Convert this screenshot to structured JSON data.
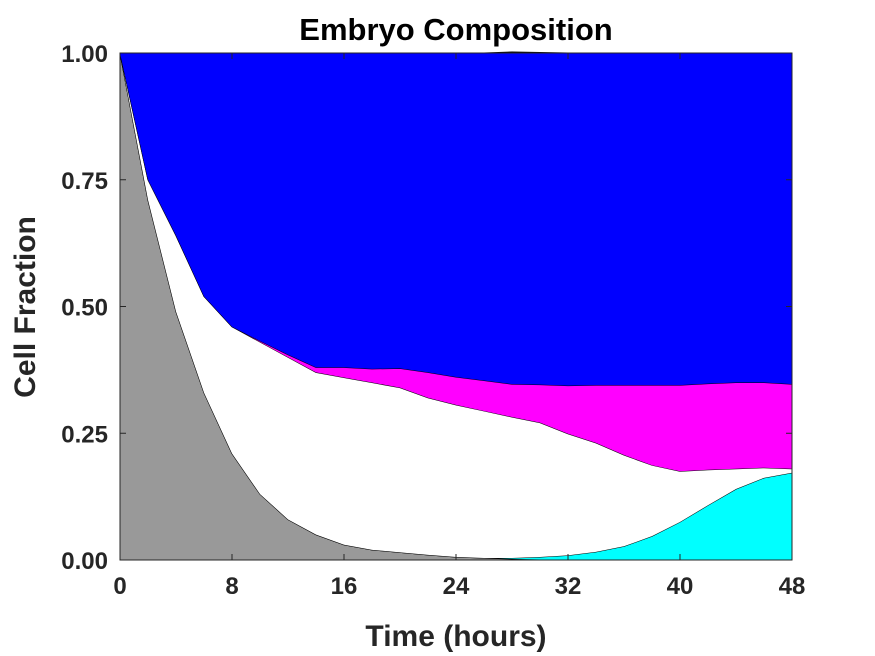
{
  "chart_data": {
    "type": "area",
    "stacked": true,
    "title": "Embryo Composition",
    "xlabel": "Time (hours)",
    "ylabel": "Cell Fraction",
    "xlim": [
      0,
      48
    ],
    "ylim": [
      0,
      1
    ],
    "xticks": [
      0,
      8,
      16,
      24,
      32,
      40,
      48
    ],
    "xtick_labels": [
      "0",
      "8",
      "16",
      "24",
      "32",
      "40",
      "48"
    ],
    "yticks": [
      0,
      0.25,
      0.5,
      0.75,
      1.0
    ],
    "ytick_labels": [
      "0.00",
      "0.25",
      "0.50",
      "0.75",
      "1.00"
    ],
    "grid": false,
    "legend": "none",
    "x": [
      0,
      2,
      4,
      6,
      8,
      10,
      12,
      14,
      16,
      18,
      20,
      22,
      24,
      26,
      28,
      30,
      32,
      34,
      36,
      38,
      40,
      42,
      44,
      46,
      48
    ],
    "series": [
      {
        "color": "#999999",
        "values": [
          1.0,
          0.71,
          0.49,
          0.33,
          0.21,
          0.13,
          0.08,
          0.05,
          0.03,
          0.02,
          0.015,
          0.01,
          0.006,
          0.004,
          0.002,
          0.001,
          0.0,
          0.0,
          0.0,
          0.0,
          0.0,
          0.0,
          0.0,
          0.0,
          0.0
        ]
      },
      {
        "color": "#00ffff",
        "values": [
          0.0,
          0.0,
          0.0,
          0.0,
          0.0,
          0.0,
          0.0,
          0.0,
          0.0,
          0.0,
          0.0,
          0.0,
          0.0,
          0.0,
          0.002,
          0.005,
          0.009,
          0.016,
          0.027,
          0.047,
          0.075,
          0.108,
          0.14,
          0.162,
          0.172
        ]
      },
      {
        "color": "#ffffff",
        "values": [
          0.0,
          0.04,
          0.15,
          0.19,
          0.25,
          0.3,
          0.32,
          0.32,
          0.33,
          0.33,
          0.325,
          0.31,
          0.3,
          0.29,
          0.278,
          0.265,
          0.24,
          0.215,
          0.18,
          0.14,
          0.1,
          0.07,
          0.04,
          0.02,
          0.008
        ]
      },
      {
        "color": "#ff00ff",
        "values": [
          0.0,
          0.0,
          0.0,
          0.0,
          0.0,
          0.002,
          0.005,
          0.01,
          0.02,
          0.027,
          0.038,
          0.05,
          0.055,
          0.06,
          0.065,
          0.075,
          0.095,
          0.114,
          0.138,
          0.158,
          0.17,
          0.17,
          0.17,
          0.168,
          0.167
        ]
      },
      {
        "color": "#0000ff",
        "values": [
          0.0,
          0.25,
          0.36,
          0.48,
          0.54,
          0.568,
          0.595,
          0.62,
          0.62,
          0.623,
          0.622,
          0.63,
          0.639,
          0.646,
          0.655,
          0.655,
          0.656,
          0.655,
          0.655,
          0.655,
          0.655,
          0.652,
          0.65,
          0.65,
          0.653
        ]
      }
    ]
  }
}
